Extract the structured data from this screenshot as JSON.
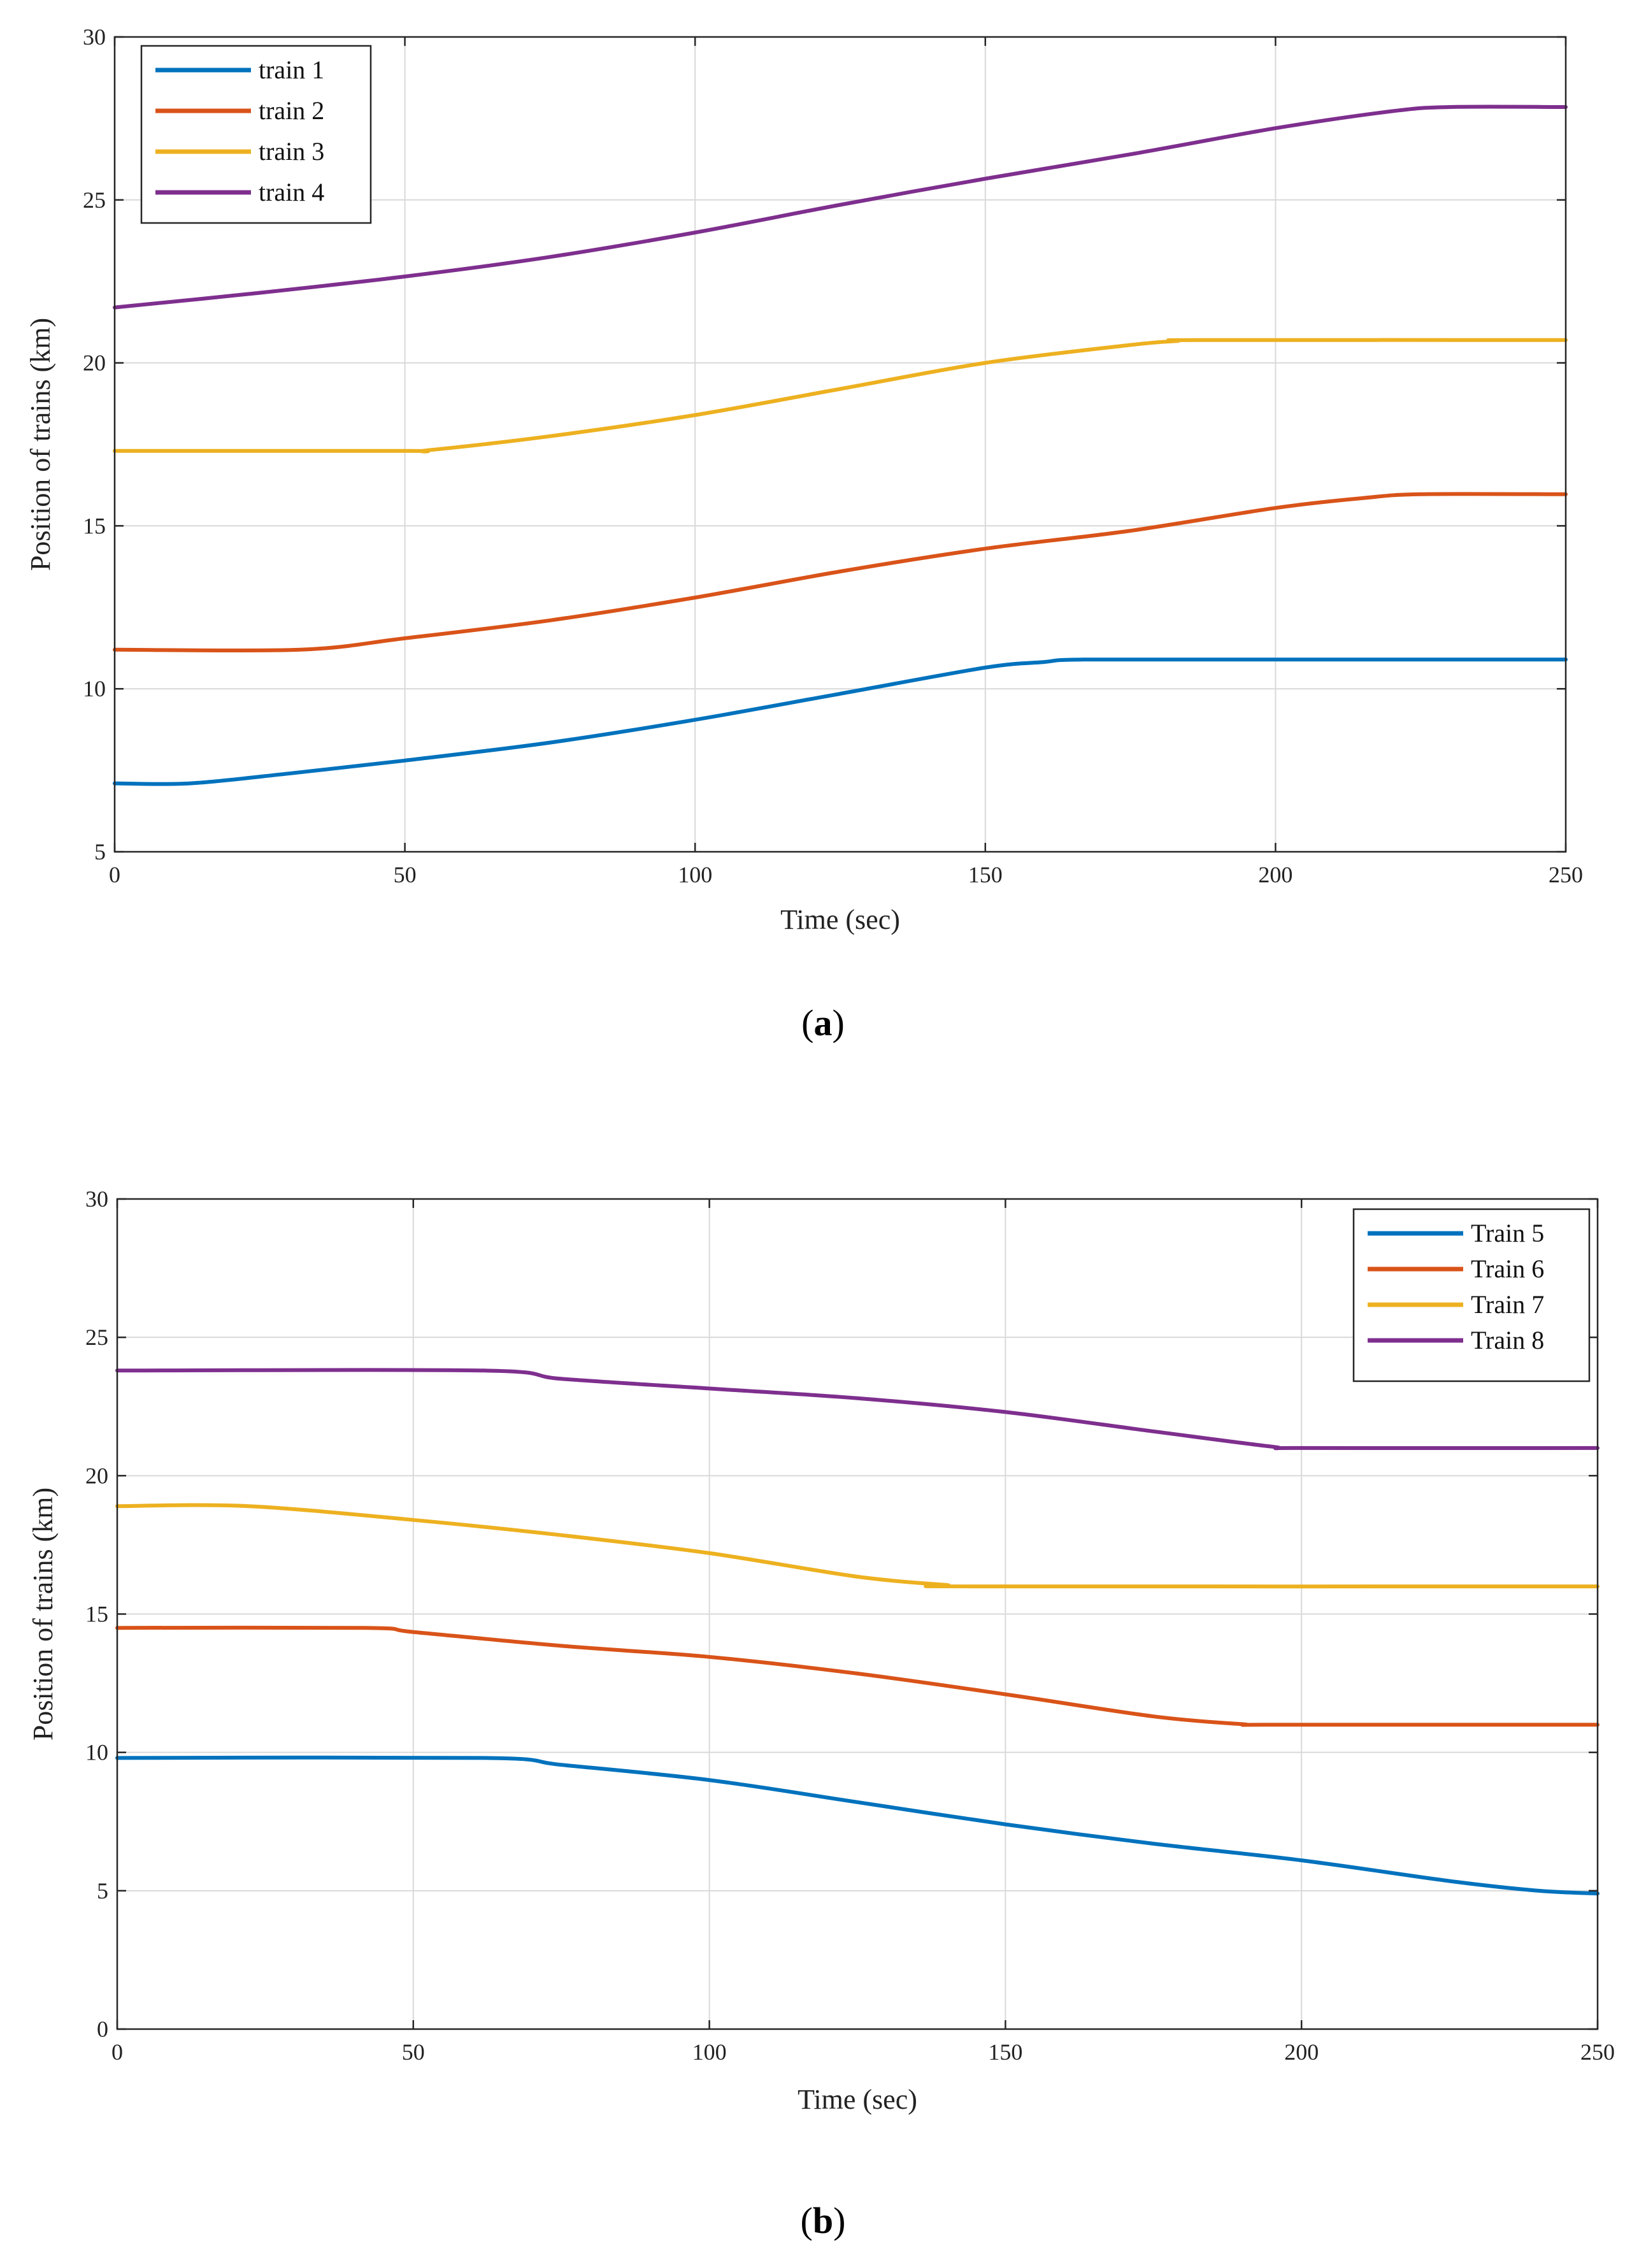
{
  "chart_data": [
    {
      "type": "line",
      "panel_label": [
        "(",
        "a",
        ")"
      ],
      "xlabel": "Time (sec)",
      "ylabel": "Position of trains (km)",
      "xlim": [
        0,
        250
      ],
      "ylim": [
        5,
        30
      ],
      "xticks": [
        0,
        50,
        100,
        150,
        200,
        250
      ],
      "yticks": [
        5,
        10,
        15,
        20,
        25,
        30
      ],
      "grid": true,
      "legend_position": "top-left",
      "series": [
        {
          "name": "train 1",
          "color": "#0072BD",
          "x": [
            0,
            13,
            30,
            50,
            75,
            100,
            125,
            150,
            160,
            167,
            200,
            250
          ],
          "y": [
            7.1,
            7.1,
            7.4,
            7.8,
            8.35,
            9.05,
            9.85,
            10.65,
            10.82,
            10.9,
            10.9,
            10.9
          ]
        },
        {
          "name": "train 2",
          "color": "#D95319",
          "x": [
            0,
            32,
            50,
            75,
            100,
            125,
            150,
            175,
            200,
            215,
            225,
            250
          ],
          "y": [
            11.2,
            11.2,
            11.55,
            12.1,
            12.8,
            13.6,
            14.3,
            14.85,
            15.55,
            15.85,
            15.97,
            15.97
          ]
        },
        {
          "name": "train 3",
          "color": "#EDB120",
          "x": [
            0,
            50,
            54,
            75,
            100,
            125,
            150,
            175,
            183,
            187,
            250
          ],
          "y": [
            17.3,
            17.3,
            17.32,
            17.75,
            18.4,
            19.2,
            20.0,
            20.55,
            20.67,
            20.7,
            20.7
          ]
        },
        {
          "name": "train 4",
          "color": "#7E2F8E",
          "x": [
            0,
            25,
            50,
            75,
            100,
            125,
            150,
            175,
            200,
            220,
            230,
            250
          ],
          "y": [
            21.7,
            22.15,
            22.65,
            23.25,
            24.0,
            24.85,
            25.65,
            26.4,
            27.2,
            27.72,
            27.85,
            27.85
          ]
        }
      ]
    },
    {
      "type": "line",
      "panel_label": [
        "(",
        "b",
        ")"
      ],
      "xlabel": "Time (sec)",
      "ylabel": "Position of trains (km)",
      "xlim": [
        0,
        250
      ],
      "ylim": [
        0,
        30
      ],
      "xticks": [
        0,
        50,
        100,
        150,
        200,
        250
      ],
      "yticks": [
        0,
        5,
        10,
        15,
        20,
        25,
        30
      ],
      "grid": true,
      "legend_position": "top-right",
      "series": [
        {
          "name": "Train 5",
          "color": "#0072BD",
          "x": [
            0,
            62,
            75,
            100,
            125,
            150,
            175,
            200,
            225,
            240,
            250
          ],
          "y": [
            9.8,
            9.8,
            9.55,
            9.0,
            8.2,
            7.4,
            6.7,
            6.1,
            5.35,
            5.0,
            4.9
          ]
        },
        {
          "name": "Train 6",
          "color": "#D95319",
          "x": [
            0,
            42,
            50,
            75,
            100,
            125,
            150,
            175,
            190,
            195,
            250
          ],
          "y": [
            14.5,
            14.5,
            14.35,
            13.85,
            13.45,
            12.85,
            12.1,
            11.3,
            11.02,
            11.0,
            11.0
          ]
        },
        {
          "name": "Train 7",
          "color": "#EDB120",
          "x": [
            0,
            22,
            50,
            75,
            100,
            125,
            140,
            145,
            250
          ],
          "y": [
            18.9,
            18.9,
            18.4,
            17.85,
            17.2,
            16.35,
            16.05,
            16.0,
            16.0
          ]
        },
        {
          "name": "Train 8",
          "color": "#7E2F8E",
          "x": [
            0,
            62,
            75,
            100,
            125,
            150,
            175,
            195,
            200,
            250
          ],
          "y": [
            23.8,
            23.8,
            23.5,
            23.15,
            22.8,
            22.3,
            21.6,
            21.05,
            21.0,
            21.0
          ]
        }
      ]
    }
  ]
}
